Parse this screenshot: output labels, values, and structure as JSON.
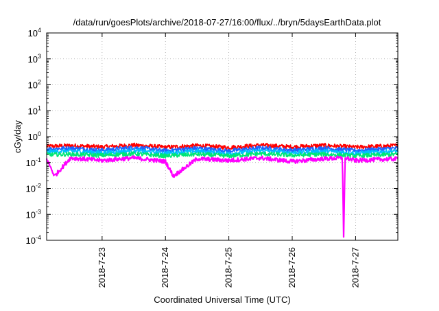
{
  "chart_data": {
    "type": "line",
    "title": "/data/run/goesPlots/archive/2018-07-27/16:00/flux/../bryn/5daysEarthData.plot",
    "xlabel": "Coordinated Universal Time (UTC)",
    "ylabel": "cGy/day",
    "yscale": "log",
    "ylim": [
      0.0001,
      10000
    ],
    "xlim": [
      "2018-07-22T03:00",
      "2018-07-27T16:00"
    ],
    "x_ticks": [
      "2018-7-23",
      "2018-7-24",
      "2018-7-25",
      "2018-7-26",
      "2018-7-27"
    ],
    "y_ticks": [
      {
        "base": "10",
        "exp": "-4"
      },
      {
        "base": "10",
        "exp": "-3"
      },
      {
        "base": "10",
        "exp": "-2"
      },
      {
        "base": "10",
        "exp": "-1"
      },
      {
        "base": "10",
        "exp": "0"
      },
      {
        "base": "10",
        "exp": "1"
      },
      {
        "base": "10",
        "exp": "2"
      },
      {
        "base": "10",
        "exp": "3"
      },
      {
        "base": "10",
        "exp": "4"
      }
    ],
    "grid": true,
    "legend": "none",
    "series": [
      {
        "color": "#ff0000",
        "x": [
          "2018-07-22T03:00",
          "2018-07-22T12:00",
          "2018-07-23T00:00",
          "2018-07-23T12:00",
          "2018-07-24T00:00",
          "2018-07-24T12:00",
          "2018-07-25T00:00",
          "2018-07-25T12:00",
          "2018-07-26T00:00",
          "2018-07-26T12:00",
          "2018-07-27T00:00",
          "2018-07-27T16:00"
        ],
        "values": [
          0.42,
          0.45,
          0.4,
          0.47,
          0.39,
          0.45,
          0.38,
          0.47,
          0.4,
          0.46,
          0.39,
          0.45
        ]
      },
      {
        "color": "#1e64ff",
        "x": [
          "2018-07-22T03:00",
          "2018-07-22T12:00",
          "2018-07-23T00:00",
          "2018-07-23T12:00",
          "2018-07-24T00:00",
          "2018-07-24T12:00",
          "2018-07-25T00:00",
          "2018-07-25T12:00",
          "2018-07-26T00:00",
          "2018-07-26T12:00",
          "2018-07-27T00:00",
          "2018-07-27T16:00"
        ],
        "values": [
          0.33,
          0.36,
          0.3,
          0.38,
          0.29,
          0.36,
          0.28,
          0.37,
          0.3,
          0.36,
          0.29,
          0.36
        ]
      },
      {
        "color": "#00bfff",
        "x": [
          "2018-07-22T03:00",
          "2018-07-22T12:00",
          "2018-07-23T00:00",
          "2018-07-23T12:00",
          "2018-07-24T00:00",
          "2018-07-24T12:00",
          "2018-07-25T00:00",
          "2018-07-25T12:00",
          "2018-07-26T00:00",
          "2018-07-26T12:00",
          "2018-07-27T00:00",
          "2018-07-27T16:00"
        ],
        "values": [
          0.26,
          0.28,
          0.24,
          0.29,
          0.23,
          0.28,
          0.22,
          0.29,
          0.24,
          0.28,
          0.23,
          0.28
        ]
      },
      {
        "color": "#00e676",
        "x": [
          "2018-07-22T03:00",
          "2018-07-22T12:00",
          "2018-07-23T00:00",
          "2018-07-23T12:00",
          "2018-07-24T00:00",
          "2018-07-24T12:00",
          "2018-07-25T00:00",
          "2018-07-25T12:00",
          "2018-07-26T00:00",
          "2018-07-26T12:00",
          "2018-07-27T00:00",
          "2018-07-27T16:00"
        ],
        "values": [
          0.2,
          0.21,
          0.19,
          0.22,
          0.18,
          0.21,
          0.18,
          0.22,
          0.19,
          0.21,
          0.18,
          0.21
        ]
      },
      {
        "color": "#ff00ff",
        "x": [
          "2018-07-22T03:00",
          "2018-07-22T06:00",
          "2018-07-22T12:00",
          "2018-07-23T00:00",
          "2018-07-23T12:00",
          "2018-07-24T00:00",
          "2018-07-24T03:00",
          "2018-07-24T12:00",
          "2018-07-25T00:00",
          "2018-07-25T12:00",
          "2018-07-26T00:00",
          "2018-07-26T12:00",
          "2018-07-26T19:00",
          "2018-07-26T19:30",
          "2018-07-26T20:00",
          "2018-07-27T00:00",
          "2018-07-27T16:00"
        ],
        "values": [
          0.14,
          0.03,
          0.15,
          0.12,
          0.15,
          0.11,
          0.03,
          0.14,
          0.12,
          0.15,
          0.11,
          0.14,
          0.15,
          0.0001,
          0.15,
          0.12,
          0.14
        ]
      }
    ]
  }
}
